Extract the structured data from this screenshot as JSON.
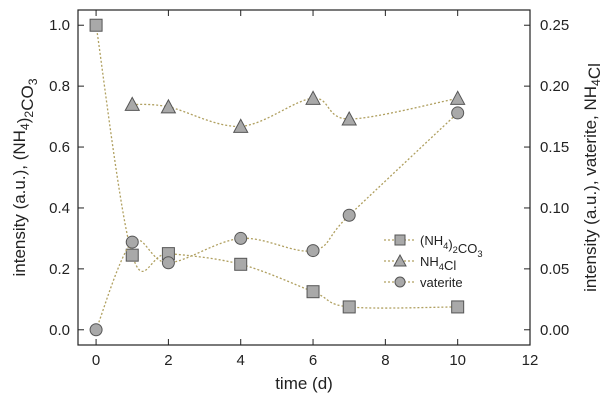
{
  "chart_data": {
    "type": "line",
    "xlabel": "time (d)",
    "ylabel_left": "intensity (a.u.), (NH₄)₂CO₃",
    "ylabel_right": "intensity (a.u.), vaterite, NH₄Cl",
    "xlim": [
      -0.5,
      12
    ],
    "ylim_left": [
      -0.05,
      1.05
    ],
    "ylim_right": [
      -0.0125,
      0.2625
    ],
    "x_ticks": [
      "0",
      "2",
      "4",
      "6",
      "8",
      "10",
      "12"
    ],
    "y_left_ticks": [
      "0.0",
      "0.2",
      "0.4",
      "0.6",
      "0.8",
      "1.0"
    ],
    "y_right_ticks": [
      "0.00",
      "0.05",
      "0.10",
      "0.15",
      "0.20",
      "0.25"
    ],
    "grid": false,
    "legend_position": "center-right",
    "series": [
      {
        "name": "(NH₄)₂CO₃",
        "marker": "square",
        "axis": "left",
        "x": [
          0,
          1,
          2,
          4,
          6,
          7,
          10
        ],
        "y": [
          1.0,
          0.245,
          0.25,
          0.215,
          0.125,
          0.075,
          0.075
        ]
      },
      {
        "name": "NH₄Cl",
        "marker": "triangle",
        "axis": "right",
        "x": [
          1,
          2,
          4,
          6,
          7,
          10
        ],
        "y": [
          0.185,
          0.183,
          0.167,
          0.19,
          0.173,
          0.19
        ]
      },
      {
        "name": "vaterite",
        "marker": "circle",
        "axis": "right",
        "x": [
          0,
          1,
          2,
          4,
          6,
          7,
          10
        ],
        "y": [
          0.0,
          0.072,
          0.055,
          0.075,
          0.065,
          0.094,
          0.178
        ]
      }
    ],
    "colors": {
      "marker_fill": "#a9a9a9",
      "marker_stroke": "#555555",
      "line": "#b0a060",
      "axis": "#222222"
    }
  }
}
